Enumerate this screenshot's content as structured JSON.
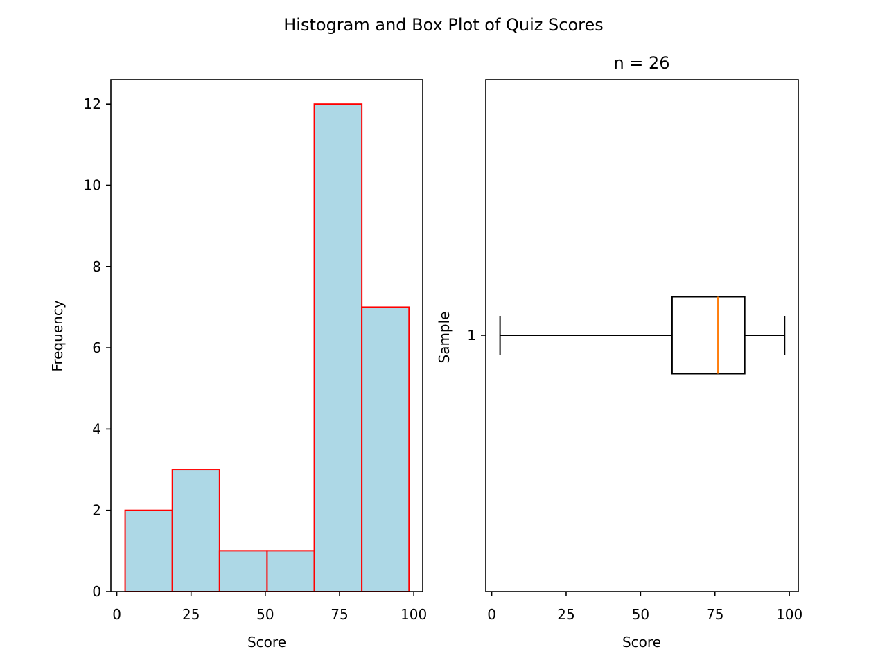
{
  "figure": {
    "suptitle": "Histogram and Box Plot of Quiz Scores"
  },
  "chart_data": [
    {
      "type": "bar",
      "subtype": "histogram",
      "title": "",
      "xlabel": "Score",
      "ylabel": "Frequency",
      "bins": [
        {
          "from": 2.8,
          "to": 18.7,
          "count": 2
        },
        {
          "from": 18.7,
          "to": 34.6,
          "count": 3
        },
        {
          "from": 34.6,
          "to": 50.6,
          "count": 1
        },
        {
          "from": 50.6,
          "to": 66.5,
          "count": 1
        },
        {
          "from": 66.5,
          "to": 82.5,
          "count": 12
        },
        {
          "from": 82.5,
          "to": 98.4,
          "count": 7
        }
      ],
      "xlim": [
        -2,
        103
      ],
      "ylim": [
        0,
        12.6
      ],
      "xticks": [
        0,
        25,
        50,
        75,
        100
      ],
      "yticks": [
        0,
        2,
        4,
        6,
        8,
        10,
        12
      ],
      "colors": {
        "fill": "#add8e6",
        "edge": "#ff0000"
      },
      "grid": false
    },
    {
      "type": "box",
      "title": "n = 26",
      "xlabel": "Score",
      "ylabel": "Sample",
      "orientation": "horizontal",
      "category": "1",
      "stats": {
        "whisker_low": 2.8,
        "q1": 60.6,
        "median": 76.0,
        "q3": 85.0,
        "whisker_high": 98.4
      },
      "xlim": [
        -2,
        103
      ],
      "xticks": [
        0,
        25,
        50,
        75,
        100
      ],
      "colors": {
        "box": "#000000",
        "median": "#ff7f0e"
      },
      "grid": false
    }
  ]
}
